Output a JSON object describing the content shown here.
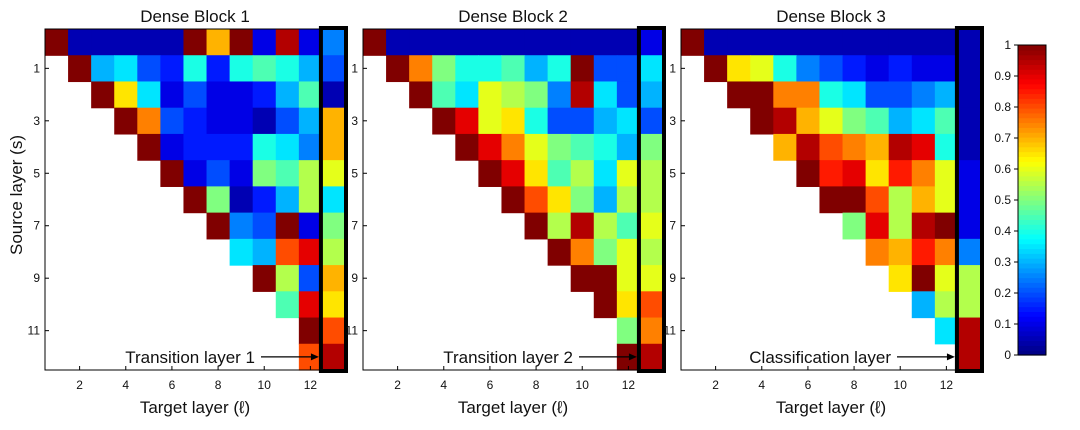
{
  "chart_data": {
    "type": "heatmap",
    "ylabel": "Source layer (s)",
    "xlabel": "Target layer (ℓ)",
    "x_ticks": [
      "2",
      "4",
      "6",
      "8",
      "10",
      "12"
    ],
    "y_ticks": [
      "1",
      "3",
      "5",
      "7",
      "9",
      "11"
    ],
    "colorbar": {
      "min": 0,
      "max": 1,
      "ticks": [
        "0",
        "0.1",
        "0.2",
        "0.3",
        "0.4",
        "0.5",
        "0.6",
        "0.7",
        "0.8",
        "0.9",
        "1"
      ],
      "colormap": "jet"
    },
    "panels": [
      {
        "title": "Dense Block 1",
        "annotation": "Transition layer 1",
        "matrix": [
          [
            1.0,
            0.05,
            0.05,
            0.05,
            0.05,
            0.05,
            1.0,
            0.7,
            1.0,
            0.1,
            0.95,
            0.1,
            0.25
          ],
          [
            null,
            1.0,
            0.3,
            0.35,
            0.2,
            0.15,
            0.4,
            0.15,
            0.4,
            0.45,
            0.4,
            0.3,
            0.2
          ],
          [
            null,
            null,
            1.0,
            0.65,
            0.35,
            0.1,
            0.2,
            0.1,
            0.1,
            0.15,
            0.3,
            0.45,
            0.05
          ],
          [
            null,
            null,
            null,
            1.0,
            0.75,
            0.2,
            0.15,
            0.1,
            0.1,
            0.05,
            0.2,
            0.3,
            0.7
          ],
          [
            null,
            null,
            null,
            null,
            1.0,
            0.1,
            0.15,
            0.15,
            0.15,
            0.4,
            0.35,
            0.25,
            0.7
          ],
          [
            null,
            null,
            null,
            null,
            null,
            1.0,
            0.1,
            0.2,
            0.1,
            0.5,
            0.45,
            0.55,
            0.6
          ],
          [
            null,
            null,
            null,
            null,
            null,
            null,
            1.0,
            0.5,
            0.05,
            0.15,
            0.3,
            0.55,
            0.35
          ],
          [
            null,
            null,
            null,
            null,
            null,
            null,
            null,
            1.0,
            0.25,
            0.2,
            1.0,
            0.1,
            0.5
          ],
          [
            null,
            null,
            null,
            null,
            null,
            null,
            null,
            null,
            0.35,
            0.3,
            0.8,
            0.9,
            0.55
          ],
          [
            null,
            null,
            null,
            null,
            null,
            null,
            null,
            null,
            null,
            1.0,
            0.55,
            0.2,
            0.7
          ],
          [
            null,
            null,
            null,
            null,
            null,
            null,
            null,
            null,
            null,
            null,
            0.45,
            0.9,
            0.65
          ],
          [
            null,
            null,
            null,
            null,
            null,
            null,
            null,
            null,
            null,
            null,
            null,
            1.0,
            0.8
          ],
          [
            null,
            null,
            null,
            null,
            null,
            null,
            null,
            null,
            null,
            null,
            null,
            0.8,
            0.95
          ]
        ]
      },
      {
        "title": "Dense Block 2",
        "annotation": "Transition layer 2",
        "matrix": [
          [
            1.0,
            0.05,
            0.05,
            0.05,
            0.05,
            0.05,
            0.05,
            0.05,
            0.05,
            0.05,
            0.05,
            0.05,
            0.1
          ],
          [
            null,
            1.0,
            0.75,
            0.5,
            0.4,
            0.4,
            0.45,
            0.3,
            0.4,
            1.0,
            0.2,
            0.2,
            0.35
          ],
          [
            null,
            null,
            1.0,
            0.45,
            0.35,
            0.6,
            0.55,
            0.5,
            0.25,
            0.95,
            0.35,
            0.2,
            0.3
          ],
          [
            null,
            null,
            null,
            1.0,
            0.9,
            0.6,
            0.65,
            0.4,
            0.2,
            0.2,
            0.3,
            0.35,
            0.2
          ],
          [
            null,
            null,
            null,
            null,
            1.0,
            0.9,
            0.75,
            0.6,
            0.5,
            0.45,
            0.4,
            0.3,
            0.5
          ],
          [
            null,
            null,
            null,
            null,
            null,
            1.0,
            0.9,
            0.65,
            0.45,
            0.55,
            0.35,
            0.6,
            0.55
          ],
          [
            null,
            null,
            null,
            null,
            null,
            null,
            1.0,
            0.8,
            0.65,
            0.5,
            0.3,
            0.55,
            0.55
          ],
          [
            null,
            null,
            null,
            null,
            null,
            null,
            null,
            1.0,
            0.55,
            0.95,
            0.55,
            0.45,
            0.6
          ],
          [
            null,
            null,
            null,
            null,
            null,
            null,
            null,
            null,
            1.0,
            0.75,
            0.5,
            0.6,
            0.55
          ],
          [
            null,
            null,
            null,
            null,
            null,
            null,
            null,
            null,
            null,
            1.0,
            1.0,
            0.6,
            0.6
          ],
          [
            null,
            null,
            null,
            null,
            null,
            null,
            null,
            null,
            null,
            null,
            1.0,
            0.65,
            0.8
          ],
          [
            null,
            null,
            null,
            null,
            null,
            null,
            null,
            null,
            null,
            null,
            null,
            0.5,
            0.75
          ],
          [
            null,
            null,
            null,
            null,
            null,
            null,
            null,
            null,
            null,
            null,
            null,
            1.0,
            0.95
          ]
        ]
      },
      {
        "title": "Dense Block 3",
        "annotation": "Classification layer",
        "matrix": [
          [
            1.0,
            0.05,
            0.05,
            0.05,
            0.05,
            0.05,
            0.05,
            0.05,
            0.05,
            0.05,
            0.05,
            0.05,
            0.05
          ],
          [
            null,
            1.0,
            0.65,
            0.6,
            0.4,
            0.25,
            0.2,
            0.15,
            0.1,
            0.15,
            0.1,
            0.1,
            0.05
          ],
          [
            null,
            null,
            1.0,
            1.0,
            0.75,
            0.75,
            0.4,
            0.35,
            0.2,
            0.2,
            0.25,
            0.3,
            0.05
          ],
          [
            null,
            null,
            null,
            1.0,
            0.95,
            0.7,
            0.6,
            0.5,
            0.45,
            0.3,
            0.35,
            0.45,
            0.05
          ],
          [
            null,
            null,
            null,
            null,
            0.7,
            0.95,
            0.8,
            0.75,
            0.7,
            0.95,
            0.9,
            0.4,
            0.05
          ],
          [
            null,
            null,
            null,
            null,
            null,
            1.0,
            0.85,
            0.9,
            0.65,
            0.85,
            0.75,
            0.6,
            0.1
          ],
          [
            null,
            null,
            null,
            null,
            null,
            null,
            1.0,
            1.0,
            0.8,
            0.55,
            0.7,
            0.6,
            0.1
          ],
          [
            null,
            null,
            null,
            null,
            null,
            null,
            null,
            0.5,
            0.9,
            0.55,
            0.95,
            1.0,
            0.1
          ],
          [
            null,
            null,
            null,
            null,
            null,
            null,
            null,
            null,
            0.75,
            0.7,
            0.85,
            0.75,
            0.25
          ],
          [
            null,
            null,
            null,
            null,
            null,
            null,
            null,
            null,
            null,
            0.65,
            1.0,
            0.6,
            0.55
          ],
          [
            null,
            null,
            null,
            null,
            null,
            null,
            null,
            null,
            null,
            null,
            0.3,
            0.55,
            0.55
          ],
          [
            null,
            null,
            null,
            null,
            null,
            null,
            null,
            null,
            null,
            null,
            null,
            0.35,
            0.95
          ],
          [
            null,
            null,
            null,
            null,
            null,
            null,
            null,
            null,
            null,
            null,
            null,
            null,
            0.95
          ]
        ]
      }
    ]
  }
}
